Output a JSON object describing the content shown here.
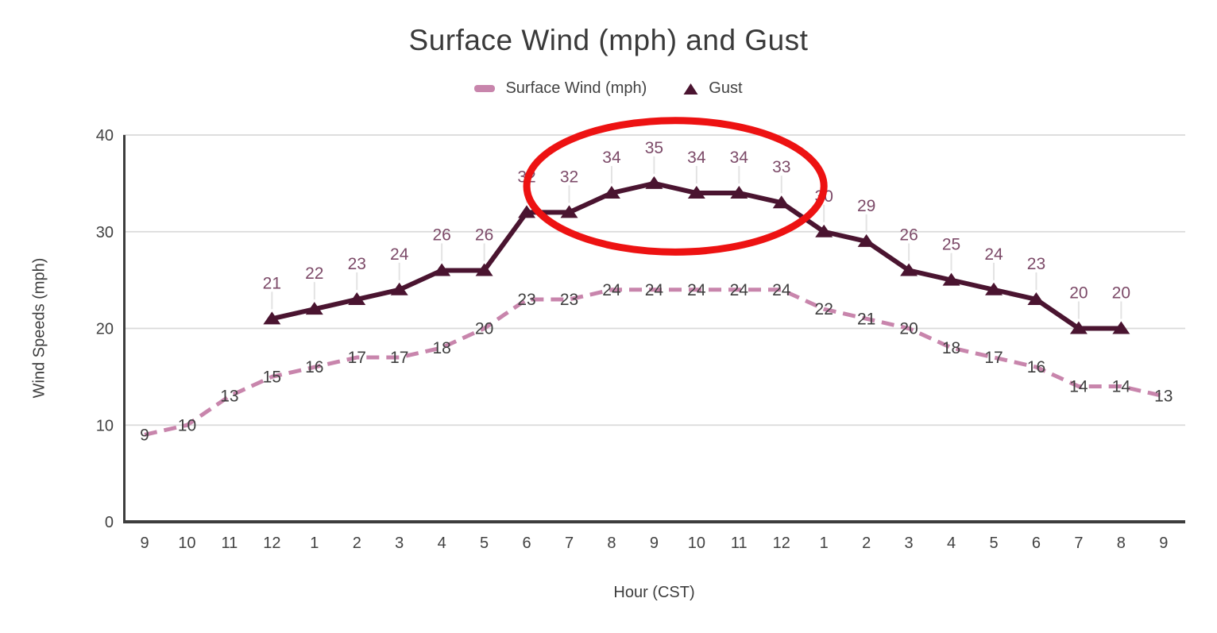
{
  "chart_data": {
    "type": "line",
    "title": "Surface Wind (mph) and Gust",
    "xlabel": "Hour (CST)",
    "ylabel": "Wind Speeds (mph)",
    "x_ticks": [
      "9",
      "10",
      "11",
      "12",
      "1",
      "2",
      "3",
      "4",
      "5",
      "6",
      "7",
      "8",
      "9",
      "10",
      "11",
      "12",
      "1",
      "2",
      "3",
      "4",
      "5",
      "6",
      "7",
      "8",
      "9"
    ],
    "y_ticks": [
      0,
      10,
      20,
      30,
      40
    ],
    "ylim": [
      0,
      40
    ],
    "grid": "horizontal",
    "legend_position": "top",
    "data_labels": true,
    "series": [
      {
        "name": "Surface Wind (mph)",
        "color": "#c885ac",
        "line_style": "dashed",
        "marker": "none",
        "label_color": "#3f3f3f",
        "start_index": 0,
        "values": [
          9,
          10,
          13,
          15,
          16,
          17,
          17,
          18,
          20,
          23,
          23,
          24,
          24,
          24,
          24,
          24,
          22,
          21,
          20,
          18,
          17,
          16,
          14,
          14,
          13
        ]
      },
      {
        "name": "Gust",
        "color": "#4a1430",
        "line_style": "solid",
        "marker": "triangle",
        "label_color": "#7c4a68",
        "start_index": 3,
        "values": [
          21,
          22,
          23,
          24,
          26,
          26,
          32,
          32,
          34,
          35,
          34,
          34,
          33,
          30,
          29,
          26,
          25,
          24,
          23,
          20,
          20
        ]
      }
    ],
    "annotation": {
      "type": "ellipse",
      "color": "#ed1212",
      "stroke_width": 9,
      "x_center_index": 12.5,
      "y_center_value": 34.7,
      "x_radius_index": 3.5,
      "y_radius_value": 6.8
    },
    "style_colors": {
      "grid": "#dadada",
      "axis": "#3d3d3d",
      "tick_text": "#424242",
      "title_text": "#3a3a3a",
      "label_leader": "#e3e3e3"
    }
  }
}
